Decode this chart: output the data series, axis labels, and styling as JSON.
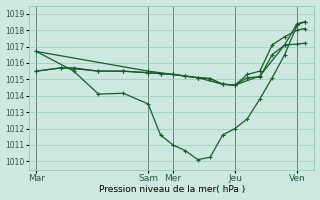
{
  "xlabel": "Pression niveau de la mer( hPa )",
  "ylim": [
    1009.5,
    1019.5
  ],
  "yticks": [
    1010,
    1011,
    1012,
    1013,
    1014,
    1015,
    1016,
    1017,
    1018,
    1019
  ],
  "xtick_labels": [
    "Mar",
    "Sam",
    "Mer",
    "Jeu",
    "Ven"
  ],
  "xtick_positions": [
    0,
    4.5,
    5.5,
    8,
    10.5
  ],
  "xlim": [
    -0.3,
    11.2
  ],
  "bg_color": "#cce8e0",
  "grid_color": "#99ccbb",
  "line_color": "#1a5c2a",
  "vline_color": "#557766",
  "line1_x": [
    0,
    1.5,
    2.5,
    3.5,
    4.5,
    5.0,
    5.5,
    6.0,
    6.5,
    7.0,
    7.5,
    8.0,
    8.5,
    9.0,
    9.5,
    10.0,
    10.5,
    10.8
  ],
  "line1_y": [
    1016.7,
    1015.5,
    1014.1,
    1014.15,
    1013.5,
    1011.6,
    1011.0,
    1010.65,
    1010.1,
    1010.25,
    1011.6,
    1012.0,
    1012.6,
    1013.8,
    1015.1,
    1016.5,
    1018.3,
    1018.5
  ],
  "line2_x": [
    0,
    1.0,
    1.5,
    2.5,
    3.5,
    4.5,
    5.0,
    5.5,
    6.0,
    6.5,
    7.0,
    7.5,
    8.0,
    8.5,
    9.0,
    9.5,
    10.0,
    10.5,
    10.8
  ],
  "line2_y": [
    1015.5,
    1015.7,
    1015.65,
    1015.5,
    1015.5,
    1015.4,
    1015.35,
    1015.3,
    1015.2,
    1015.1,
    1015.05,
    1014.7,
    1014.65,
    1015.1,
    1015.15,
    1016.5,
    1017.1,
    1017.15,
    1017.2
  ],
  "line3_x": [
    0,
    1.0,
    1.5,
    2.5,
    3.5,
    4.5,
    5.0,
    5.5,
    6.0,
    6.5,
    7.0,
    7.5,
    8.0,
    8.5,
    9.0,
    9.5,
    10.0,
    10.5,
    10.8
  ],
  "line3_y": [
    1015.5,
    1015.7,
    1015.7,
    1015.5,
    1015.5,
    1015.4,
    1015.35,
    1015.3,
    1015.2,
    1015.1,
    1015.05,
    1014.7,
    1014.65,
    1015.3,
    1015.5,
    1017.1,
    1017.6,
    1018.0,
    1018.1
  ],
  "line4_x": [
    0,
    4.5,
    5.5,
    6.5,
    7.5,
    8.0,
    9.0,
    10.0,
    10.5,
    10.8
  ],
  "line4_y": [
    1016.7,
    1015.5,
    1015.3,
    1015.1,
    1014.7,
    1014.65,
    1015.2,
    1017.1,
    1018.4,
    1018.5
  ],
  "vlines": [
    0,
    4.5,
    5.5,
    8.0,
    10.5
  ],
  "marker_size": 2.5,
  "linewidth": 0.9
}
